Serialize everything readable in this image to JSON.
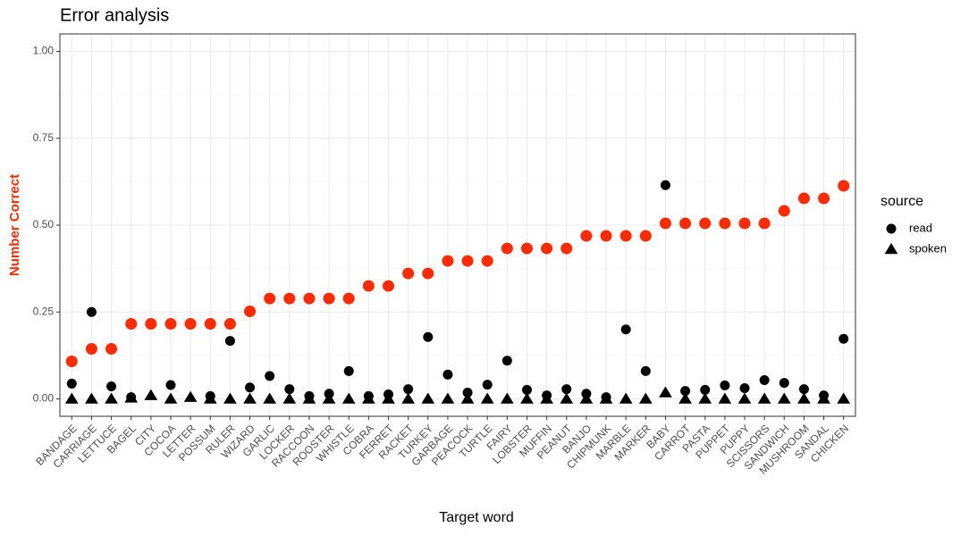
{
  "chart_data": {
    "type": "scatter",
    "title": "Error analysis",
    "x_label": "Target word",
    "y_label": "Number Correct",
    "y_label_color": "#ff2a00",
    "legend_title": "source",
    "legend_position": "right",
    "grid": true,
    "categories": [
      "BANDAGE",
      "CARRIAGE",
      "LETTUCE",
      "BAGEL",
      "CITY",
      "COCOA",
      "LETTER",
      "POSSUM",
      "RULER",
      "WIZARD",
      "GARLIC",
      "LOCKER",
      "RACCOON",
      "ROOSTER",
      "WHISTLE",
      "COBRA",
      "FERRET",
      "RACKET",
      "TURKEY",
      "GARBAGE",
      "PEACOCK",
      "TURTLE",
      "FAIRY",
      "LOBSTER",
      "MUFFIN",
      "PEANUT",
      "BANJO",
      "CHIPMUNK",
      "MARBLE",
      "MARKER",
      "BABY",
      "CARROT",
      "PASTA",
      "PUPPET",
      "PUPPY",
      "SCISSORS",
      "SANDWICH",
      "MUSHROOM",
      "SANDAL",
      "CHICKEN"
    ],
    "ylim": [
      -0.05,
      1.05
    ],
    "yticks": [
      {
        "value": 0,
        "label": "0.00"
      },
      {
        "value": 0.25,
        "label": "0.25"
      },
      {
        "value": 0.5,
        "label": "0.50"
      },
      {
        "value": 0.75,
        "label": "0.75"
      },
      {
        "value": 1,
        "label": "1.00"
      }
    ],
    "highlight": {
      "color": "#ff2a00",
      "values": [
        0.108,
        0.144,
        0.144,
        0.216,
        0.216,
        0.216,
        0.216,
        0.216,
        0.216,
        0.252,
        0.289,
        0.289,
        0.289,
        0.289,
        0.289,
        0.325,
        0.325,
        0.361,
        0.361,
        0.397,
        0.397,
        0.397,
        0.433,
        0.433,
        0.433,
        0.433,
        0.469,
        0.469,
        0.469,
        0.469,
        0.505,
        0.505,
        0.505,
        0.505,
        0.505,
        0.505,
        0.541,
        0.577,
        0.577,
        0.613
      ]
    },
    "series": [
      {
        "name": "read",
        "shape": "circle",
        "color": "#000000",
        "values": [
          0.044,
          0.25,
          0.036,
          0.005,
          null,
          0.04,
          null,
          0.008,
          0.167,
          0.033,
          0.066,
          0.028,
          0.008,
          0.015,
          0.08,
          0.008,
          0.013,
          0.028,
          0.178,
          0.07,
          0.018,
          0.041,
          0.11,
          0.026,
          0.01,
          0.028,
          0.015,
          0.005,
          0.2,
          0.08,
          0.615,
          0.023,
          0.026,
          0.039,
          0.031,
          0.054,
          0.046,
          0.028,
          0.01,
          0.173
        ]
      },
      {
        "name": "spoken",
        "shape": "triangle",
        "color": "#000000",
        "values": [
          0,
          0,
          0,
          0.003,
          0.01,
          0,
          0.005,
          0,
          0,
          0,
          0,
          0,
          0,
          0,
          0,
          0,
          0,
          0,
          0,
          0,
          0,
          0,
          0,
          0,
          0,
          0,
          0,
          0,
          0,
          0,
          0.018,
          0,
          0,
          0,
          0,
          0,
          0,
          0,
          0,
          0
        ]
      }
    ]
  }
}
